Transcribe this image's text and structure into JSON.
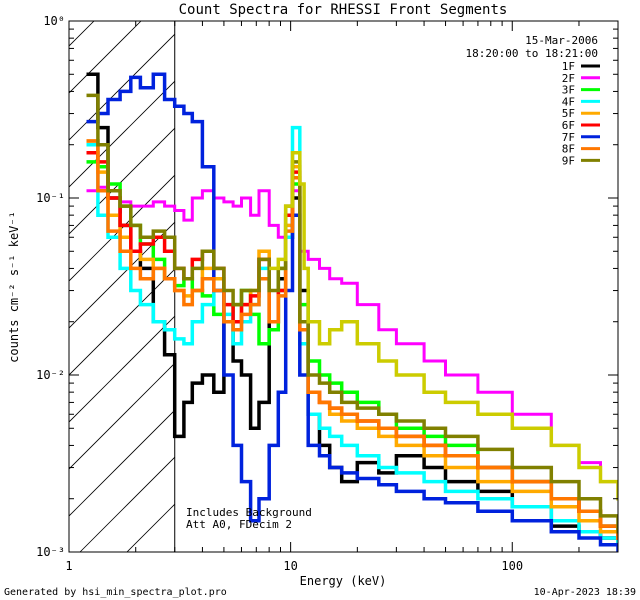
{
  "chart_data": {
    "type": "line",
    "title": "Count Spectra for RHESSI Front Segments",
    "xlabel": "Energy (keV)",
    "ylabel": "counts cm⁻² s⁻¹ keV⁻¹",
    "x_scale": "log",
    "y_scale": "log",
    "xlim": [
      1,
      300
    ],
    "ylim": [
      0.001,
      1
    ],
    "x_ticks": [
      {
        "value": 1,
        "label": "1"
      },
      {
        "value": 10,
        "label": "10"
      },
      {
        "value": 100,
        "label": "100"
      }
    ],
    "y_ticks": [
      {
        "value": 1,
        "label": "10⁰"
      },
      {
        "value": 0.1,
        "label": "10⁻¹"
      },
      {
        "value": 0.01,
        "label": "10⁻²"
      },
      {
        "value": 0.001,
        "label": "10⁻³"
      }
    ],
    "legend_position": "top-right",
    "date": "15-Mar-2006",
    "time_range": "18:20:00 to 18:21:00",
    "annotations": [
      "Includes Background",
      "Att A0, FDecim 2"
    ],
    "hatched_region_max": 3.0,
    "series": [
      {
        "name": "1F",
        "color": "#000000",
        "lw": 3.5,
        "x": [
          1.2,
          1.35,
          1.5,
          1.7,
          1.9,
          2.1,
          2.4,
          2.7,
          3.0,
          3.3,
          3.6,
          4.0,
          4.5,
          5.0,
          5.5,
          6.0,
          6.6,
          7.2,
          8.0,
          8.8,
          9.5,
          10.2,
          11.0,
          12.0,
          13.5,
          15,
          17,
          20,
          25,
          30,
          40,
          50,
          70,
          100,
          150,
          200,
          250,
          300
        ],
        "y": [
          0.5,
          0.25,
          0.1,
          0.07,
          0.05,
          0.04,
          0.02,
          0.013,
          0.0045,
          0.007,
          0.009,
          0.01,
          0.008,
          0.02,
          0.012,
          0.01,
          0.005,
          0.007,
          0.02,
          0.035,
          0.06,
          0.1,
          0.03,
          0.006,
          0.004,
          0.003,
          0.0025,
          0.0032,
          0.0028,
          0.0035,
          0.003,
          0.0025,
          0.0022,
          0.0018,
          0.0014,
          0.0013,
          0.0012,
          0.0011
        ]
      },
      {
        "name": "2F",
        "color": "#ff00ff",
        "lw": 3,
        "x": [
          1.2,
          1.35,
          1.5,
          1.7,
          1.9,
          2.1,
          2.4,
          2.7,
          3.0,
          3.3,
          3.6,
          4.0,
          4.5,
          5.0,
          5.5,
          6.0,
          6.6,
          7.2,
          8.0,
          8.8,
          9.5,
          10.2,
          11.0,
          12.0,
          13.5,
          15,
          17,
          20,
          25,
          30,
          40,
          50,
          70,
          100,
          150,
          200,
          250,
          300
        ],
        "y": [
          0.11,
          0.115,
          0.1,
          0.095,
          0.09,
          0.09,
          0.095,
          0.09,
          0.085,
          0.075,
          0.1,
          0.11,
          0.1,
          0.095,
          0.09,
          0.1,
          0.08,
          0.11,
          0.07,
          0.06,
          0.08,
          0.11,
          0.05,
          0.045,
          0.04,
          0.035,
          0.033,
          0.025,
          0.018,
          0.015,
          0.012,
          0.01,
          0.008,
          0.006,
          0.004,
          0.0032,
          0.0025,
          0.002
        ]
      },
      {
        "name": "3F",
        "color": "#00ff00",
        "lw": 3.5,
        "x": [
          1.2,
          1.35,
          1.5,
          1.7,
          1.9,
          2.1,
          2.4,
          2.7,
          3.0,
          3.3,
          3.6,
          4.0,
          4.5,
          5.0,
          5.5,
          6.0,
          6.6,
          7.2,
          8.0,
          8.8,
          9.5,
          10.2,
          11.0,
          12.0,
          13.5,
          15,
          17,
          20,
          25,
          30,
          40,
          50,
          70,
          100,
          150,
          200,
          250,
          300
        ],
        "y": [
          0.16,
          0.15,
          0.12,
          0.09,
          0.07,
          0.055,
          0.045,
          0.035,
          0.032,
          0.035,
          0.03,
          0.028,
          0.022,
          0.02,
          0.025,
          0.03,
          0.022,
          0.015,
          0.018,
          0.04,
          0.08,
          0.12,
          0.025,
          0.012,
          0.01,
          0.009,
          0.008,
          0.007,
          0.006,
          0.005,
          0.0045,
          0.004,
          0.003,
          0.0025,
          0.002,
          0.0017,
          0.0014,
          0.0012
        ]
      },
      {
        "name": "4F",
        "color": "#00ffff",
        "lw": 3.5,
        "x": [
          1.2,
          1.35,
          1.5,
          1.7,
          1.9,
          2.1,
          2.4,
          2.7,
          3.0,
          3.3,
          3.6,
          4.0,
          4.5,
          5.0,
          5.5,
          6.0,
          6.6,
          7.2,
          8.0,
          8.8,
          9.5,
          10.2,
          11.0,
          12.0,
          13.5,
          15,
          17,
          20,
          25,
          30,
          40,
          50,
          70,
          100,
          150,
          200,
          250,
          300
        ],
        "y": [
          0.2,
          0.08,
          0.06,
          0.04,
          0.03,
          0.025,
          0.02,
          0.018,
          0.016,
          0.015,
          0.02,
          0.025,
          0.03,
          0.022,
          0.015,
          0.02,
          0.025,
          0.04,
          0.02,
          0.03,
          0.06,
          0.25,
          0.015,
          0.006,
          0.005,
          0.0045,
          0.004,
          0.0035,
          0.003,
          0.0028,
          0.0025,
          0.0022,
          0.002,
          0.0018,
          0.0015,
          0.0013,
          0.0012,
          0.0011
        ]
      },
      {
        "name": "5F",
        "color": "#ffaa00",
        "lw": 3.5,
        "x": [
          1.2,
          1.35,
          1.5,
          1.7,
          1.9,
          2.1,
          2.4,
          2.7,
          3.0,
          3.3,
          3.6,
          4.0,
          4.5,
          5.0,
          5.5,
          6.0,
          6.6,
          7.2,
          8.0,
          8.8,
          9.5,
          10.2,
          11.0,
          12.0,
          13.5,
          15,
          17,
          20,
          25,
          30,
          40,
          50,
          70,
          100,
          150,
          200,
          250,
          300
        ],
        "y": [
          0.21,
          0.14,
          0.08,
          0.06,
          0.05,
          0.045,
          0.04,
          0.035,
          0.03,
          0.028,
          0.03,
          0.04,
          0.035,
          0.02,
          0.02,
          0.025,
          0.03,
          0.05,
          0.02,
          0.03,
          0.07,
          0.15,
          0.02,
          0.008,
          0.007,
          0.006,
          0.0055,
          0.005,
          0.0045,
          0.004,
          0.0035,
          0.003,
          0.0025,
          0.0022,
          0.0018,
          0.0015,
          0.0013,
          0.0012
        ]
      },
      {
        "name": "6F",
        "color": "#ff0000",
        "lw": 3.5,
        "x": [
          1.2,
          1.35,
          1.5,
          1.7,
          1.9,
          2.1,
          2.4,
          2.7,
          3.0,
          3.3,
          3.6,
          4.0,
          4.5,
          5.0,
          5.5,
          6.0,
          6.6,
          7.2,
          8.0,
          8.8,
          9.5,
          10.2,
          11.0,
          12.0,
          13.5,
          15,
          17,
          20,
          25,
          30,
          40,
          50,
          70,
          100,
          150,
          200,
          250,
          300
        ],
        "y": [
          0.18,
          0.16,
          0.1,
          0.07,
          0.05,
          0.055,
          0.06,
          0.05,
          0.04,
          0.035,
          0.045,
          0.05,
          0.04,
          0.025,
          0.02,
          0.025,
          0.028,
          0.045,
          0.02,
          0.03,
          0.08,
          0.14,
          0.02,
          0.008,
          0.007,
          0.0065,
          0.006,
          0.0055,
          0.005,
          0.0045,
          0.004,
          0.0035,
          0.003,
          0.0025,
          0.002,
          0.0017,
          0.0014,
          0.0012
        ]
      },
      {
        "name": "7F",
        "color": "#0022dd",
        "lw": 3.5,
        "x": [
          1.2,
          1.35,
          1.5,
          1.7,
          1.9,
          2.1,
          2.4,
          2.7,
          3.0,
          3.3,
          3.6,
          4.0,
          4.5,
          5.0,
          5.5,
          6.0,
          6.6,
          7.2,
          8.0,
          8.8,
          9.5,
          10.2,
          11.0,
          12.0,
          13.5,
          15,
          17,
          20,
          25,
          30,
          40,
          50,
          70,
          100,
          150,
          200,
          250,
          300
        ],
        "y": [
          0.27,
          0.3,
          0.36,
          0.4,
          0.48,
          0.42,
          0.5,
          0.36,
          0.33,
          0.3,
          0.27,
          0.15,
          0.03,
          0.01,
          0.004,
          0.0025,
          0.0015,
          0.002,
          0.004,
          0.008,
          0.03,
          0.08,
          0.01,
          0.004,
          0.0035,
          0.003,
          0.0028,
          0.0026,
          0.0024,
          0.0022,
          0.002,
          0.0019,
          0.0017,
          0.0015,
          0.0013,
          0.0012,
          0.0011,
          0.001
        ]
      },
      {
        "name": "8F",
        "color": "#ff7700",
        "lw": 3.5,
        "x": [
          1.2,
          1.35,
          1.5,
          1.7,
          1.9,
          2.1,
          2.4,
          2.7,
          3.0,
          3.3,
          3.6,
          4.0,
          4.5,
          5.0,
          5.5,
          6.0,
          6.6,
          7.2,
          8.0,
          8.8,
          9.5,
          10.2,
          11.0,
          12.0,
          13.5,
          15,
          17,
          20,
          25,
          30,
          40,
          50,
          70,
          100,
          150,
          200,
          250,
          300
        ],
        "y": [
          0.21,
          0.11,
          0.065,
          0.05,
          0.04,
          0.035,
          0.04,
          0.035,
          0.03,
          0.025,
          0.03,
          0.035,
          0.03,
          0.02,
          0.018,
          0.022,
          0.025,
          0.035,
          0.02,
          0.028,
          0.065,
          0.13,
          0.018,
          0.008,
          0.007,
          0.0065,
          0.006,
          0.0055,
          0.005,
          0.0045,
          0.004,
          0.0035,
          0.003,
          0.0025,
          0.002,
          0.0017,
          0.0014,
          0.0012
        ]
      },
      {
        "name": "9F",
        "color": "#808000",
        "lw": 3.5,
        "x": [
          1.2,
          1.35,
          1.5,
          1.7,
          1.9,
          2.1,
          2.4,
          2.7,
          3.0,
          3.3,
          3.6,
          4.0,
          4.5,
          5.0,
          5.5,
          6.0,
          6.6,
          7.2,
          8.0,
          8.8,
          9.5,
          10.2,
          11.0,
          12.0,
          13.5,
          15,
          17,
          20,
          25,
          30,
          40,
          50,
          70,
          100,
          150,
          200,
          250,
          300
        ],
        "y": [
          0.38,
          0.2,
          0.11,
          0.09,
          0.07,
          0.06,
          0.065,
          0.06,
          0.04,
          0.035,
          0.04,
          0.05,
          0.04,
          0.03,
          0.025,
          0.03,
          0.03,
          0.045,
          0.03,
          0.04,
          0.09,
          0.16,
          0.02,
          0.01,
          0.009,
          0.008,
          0.007,
          0.0065,
          0.006,
          0.0055,
          0.005,
          0.0045,
          0.0038,
          0.003,
          0.0025,
          0.002,
          0.0016,
          0.0013
        ]
      },
      {
        "name": "",
        "color": "#cccc00",
        "lw": 3.5,
        "x": [
          8.0,
          8.8,
          9.5,
          10.2,
          11.0,
          11.5,
          12.0,
          13.5,
          15,
          17,
          20,
          25,
          30,
          40,
          50,
          70,
          100,
          150,
          200,
          250,
          300
        ],
        "y": [
          0.04,
          0.045,
          0.09,
          0.18,
          0.12,
          0.04,
          0.02,
          0.015,
          0.018,
          0.02,
          0.015,
          0.012,
          0.01,
          0.008,
          0.007,
          0.006,
          0.005,
          0.004,
          0.003,
          0.0025,
          0.002
        ]
      }
    ]
  },
  "footer": {
    "left": "Generated by hsi_min_spectra_plot.pro",
    "right": "10-Apr-2023 18:39"
  }
}
